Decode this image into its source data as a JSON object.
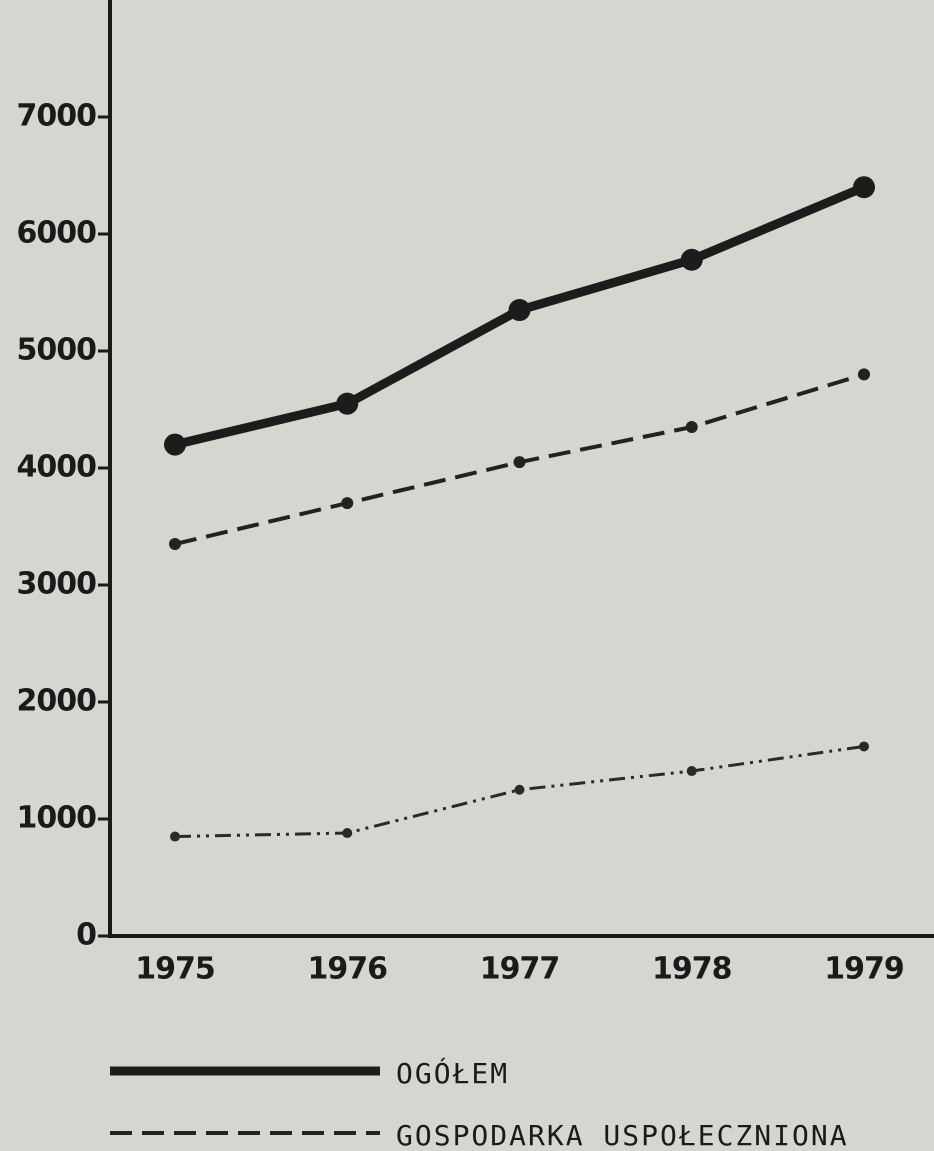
{
  "chart_data": {
    "type": "line",
    "categories": [
      "1975",
      "1976",
      "1977",
      "1978",
      "1979"
    ],
    "series": [
      {
        "name": "OGÓŁEM",
        "color": "#1c1c1c",
        "style": "solid",
        "width": 9,
        "values": [
          4200,
          4550,
          5350,
          5780,
          6400
        ]
      },
      {
        "name": "GOSPODARKA USPOŁECZNIONA",
        "color": "#222222",
        "style": "dashed",
        "width": 4,
        "values": [
          3350,
          3700,
          4050,
          4350,
          4800
        ]
      },
      {
        "color": "#2a2a2a",
        "style": "dashdot",
        "width": 3,
        "values": [
          850,
          880,
          1250,
          1410,
          1620
        ]
      }
    ],
    "ylim": [
      0,
      8000
    ],
    "yticks": [
      0,
      1000,
      2000,
      3000,
      4000,
      5000,
      6000,
      7000
    ],
    "grid": false
  }
}
